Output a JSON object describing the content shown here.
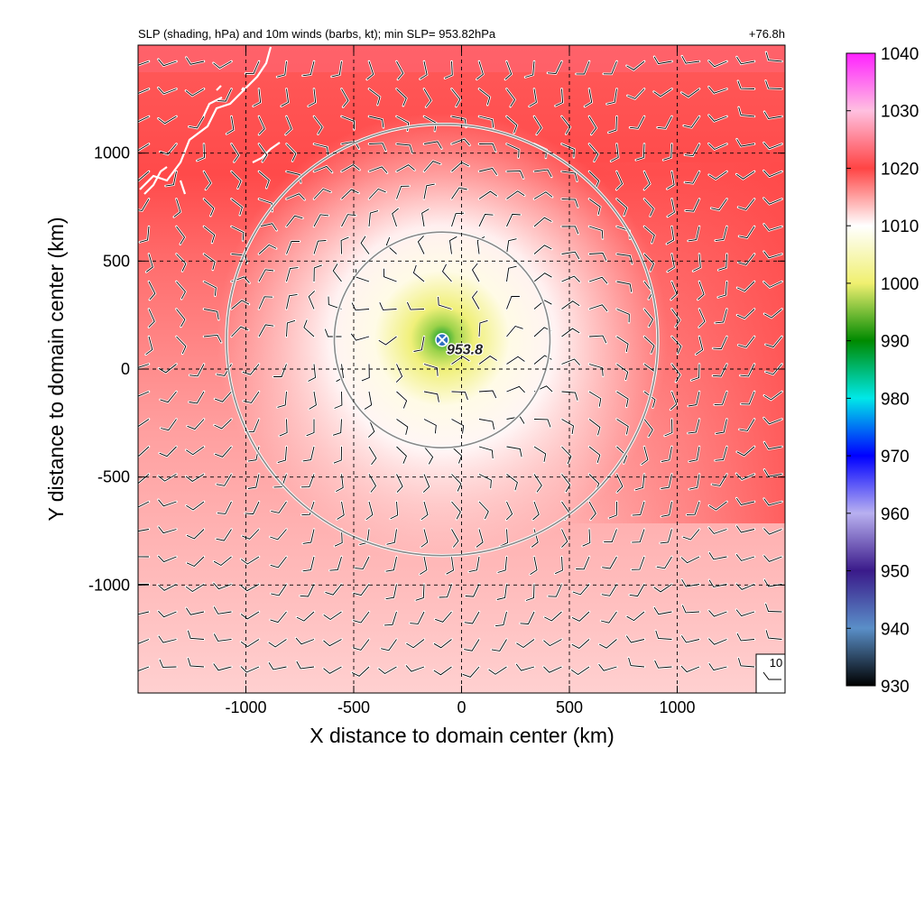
{
  "chart_data": {
    "type": "heatmap",
    "title": "SLP (shading, hPa) and 10m winds (barbs, kt); min SLP= 953.82hPa",
    "time_label": "+76.8h",
    "xlabel": "X distance to domain center (km)",
    "ylabel": "Y distance to domain center (km)",
    "xlim": [
      -1500,
      1500
    ],
    "ylim": [
      -1500,
      1500
    ],
    "x_ticks": [
      -1000,
      -500,
      0,
      500,
      1000
    ],
    "y_ticks": [
      -1000,
      -500,
      0,
      500,
      1000
    ],
    "x_tick_labels": [
      "-1000",
      "-500",
      "0",
      "500",
      "1000"
    ],
    "y_tick_labels": [
      "-1000",
      "-500",
      "0",
      "500",
      "1000"
    ],
    "grid": true,
    "colorbar": {
      "min": 930,
      "max": 1040,
      "ticks": [
        930,
        940,
        950,
        960,
        970,
        980,
        990,
        1000,
        1010,
        1020,
        1030,
        1040
      ],
      "tick_labels": [
        "930",
        "940",
        "950",
        "960",
        "970",
        "980",
        "990",
        "1000",
        "1010",
        "1020",
        "1030",
        "1040"
      ],
      "colors": [
        {
          "value": 930,
          "color": "#000000"
        },
        {
          "value": 940,
          "color": "#5a8fc8"
        },
        {
          "value": 950,
          "color": "#3a1a8a"
        },
        {
          "value": 960,
          "color": "#b8b0f0"
        },
        {
          "value": 970,
          "color": "#0000ff"
        },
        {
          "value": 980,
          "color": "#00e8e8"
        },
        {
          "value": 990,
          "color": "#008a00"
        },
        {
          "value": 1000,
          "color": "#f0f070"
        },
        {
          "value": 1010,
          "color": "#ffffff"
        },
        {
          "value": 1020,
          "color": "#ff4444"
        },
        {
          "value": 1030,
          "color": "#ffc0e0"
        },
        {
          "value": 1040,
          "color": "#ff22ff"
        }
      ]
    },
    "storm_center": {
      "x": -90,
      "y": 135,
      "min_slp_label": "953.8",
      "min_slp": 953.82
    },
    "range_rings": [
      {
        "center_x": -90,
        "center_y": 135,
        "radius_km": 500
      },
      {
        "center_x": -90,
        "center_y": 135,
        "radius_km": 1000
      }
    ],
    "wind_barb_reference": {
      "label": "10"
    }
  }
}
